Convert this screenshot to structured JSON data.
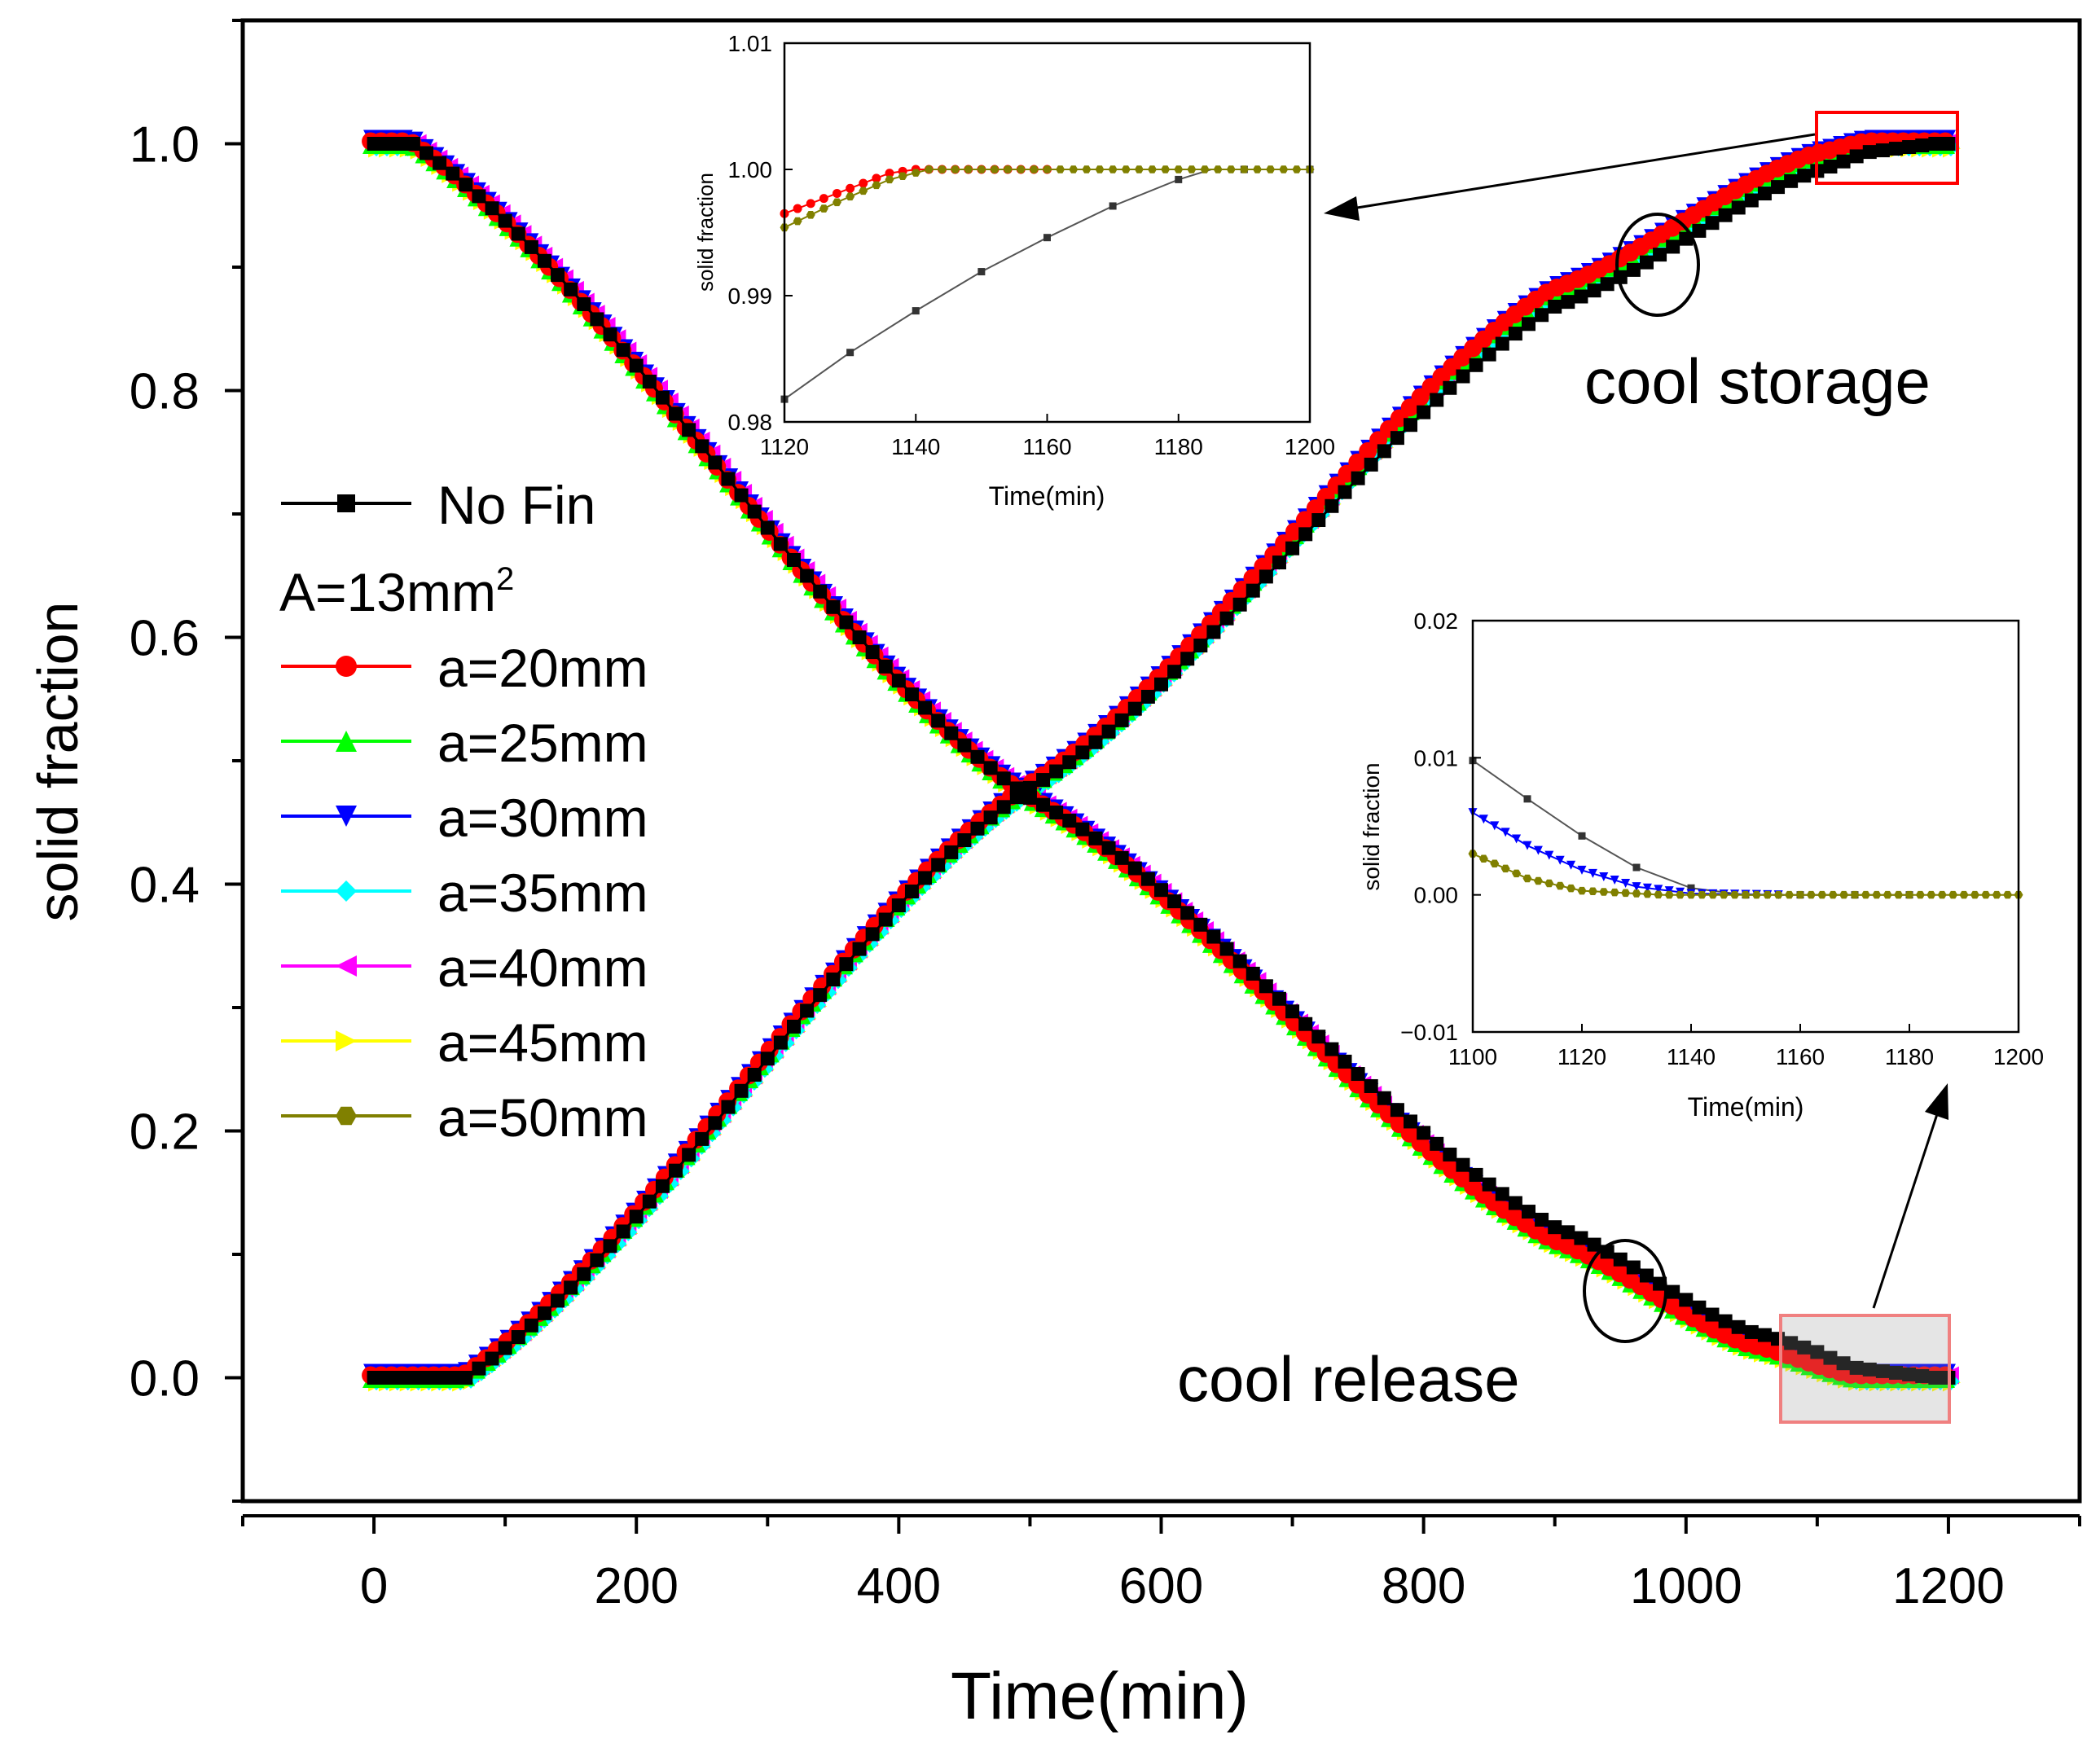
{
  "chart_data": {
    "main": {
      "type": "line",
      "xlabel": "Time(min)",
      "ylabel": "solid fraction",
      "xlim": [
        -100,
        1300
      ],
      "ylim": [
        -0.1,
        1.1
      ],
      "xticks": [
        "0",
        "200",
        "400",
        "600",
        "800",
        "1000",
        "1200"
      ],
      "yticks": [
        "0.0",
        "0.2",
        "0.4",
        "0.6",
        "0.8",
        "1.0"
      ],
      "legend": {
        "group_label": "A=13mm",
        "group_label_sup": "2",
        "entries": [
          {
            "name": "No Fin",
            "color": "#000000",
            "marker": "square"
          },
          {
            "name": "a=20mm",
            "color": "#ff0000",
            "marker": "circle"
          },
          {
            "name": "a=25mm",
            "color": "#00ff00",
            "marker": "triangle-up"
          },
          {
            "name": "a=30mm",
            "color": "#0000ff",
            "marker": "triangle-down"
          },
          {
            "name": "a=35mm",
            "color": "#00ffff",
            "marker": "diamond"
          },
          {
            "name": "a=40mm",
            "color": "#ff00ff",
            "marker": "triangle-left"
          },
          {
            "name": "a=45mm",
            "color": "#ffff00",
            "marker": "triangle-right"
          },
          {
            "name": "a=50mm",
            "color": "#808000",
            "marker": "hexagon"
          }
        ]
      },
      "series_shape": {
        "cool_storage": {
          "x": [
            0,
            70,
            500,
            900,
            1100,
            1140,
            1200
          ],
          "y": [
            0.0,
            0.0,
            0.478,
            0.88,
            0.99,
            1.0,
            1.0
          ]
        },
        "cool_release": {
          "x": [
            0,
            30,
            500,
            900,
            1050,
            1130,
            1200
          ],
          "y": [
            1.0,
            1.0,
            0.47,
            0.11,
            0.025,
            0.0,
            0.0
          ]
        },
        "nofin_offset_late": 0.012
      },
      "annotations": {
        "storage_label": "cool storage",
        "release_label": "cool release"
      }
    },
    "inset_storage": {
      "type": "line",
      "xlabel": "Time(min)",
      "ylabel": "solid fraction",
      "xlim": [
        1120,
        1200
      ],
      "ylim": [
        0.98,
        1.01
      ],
      "xticks": [
        "1120",
        "1140",
        "1160",
        "1180",
        "1200"
      ],
      "yticks": [
        "0.98",
        "0.99",
        "1.00",
        "1.01"
      ],
      "series": [
        {
          "name": "No Fin",
          "x": [
            1120,
            1130,
            1140,
            1150,
            1160,
            1170,
            1180,
            1185,
            1190,
            1200
          ],
          "y": [
            0.9818,
            0.9855,
            0.9888,
            0.9919,
            0.9946,
            0.9971,
            0.9992,
            1.0,
            1.0,
            1.0
          ]
        },
        {
          "name": "a=20mm",
          "x": [
            1120,
            1130,
            1136,
            1140,
            1160
          ],
          "y": [
            0.9965,
            0.9985,
            0.9997,
            1.0,
            1.0
          ]
        },
        {
          "name": "a=50mm",
          "x": [
            1120,
            1128,
            1136,
            1142,
            1160,
            1200
          ],
          "y": [
            0.9954,
            0.9974,
            0.9992,
            1.0,
            1.0,
            1.0
          ]
        }
      ]
    },
    "inset_release": {
      "type": "line",
      "xlabel": "Time(min)",
      "ylabel": "solid fraction",
      "xlim": [
        1100,
        1200
      ],
      "ylim": [
        -0.01,
        0.02
      ],
      "xticks": [
        "1100",
        "1120",
        "1140",
        "1160",
        "1180",
        "1200"
      ],
      "yticks": [
        "−0.01",
        "0.00",
        "0.01",
        "0.02"
      ],
      "series": [
        {
          "name": "No Fin",
          "x": [
            1100,
            1110,
            1120,
            1130,
            1140,
            1150,
            1160,
            1170,
            1180
          ],
          "y": [
            0.0098,
            0.007,
            0.0043,
            0.002,
            0.0005,
            0.0,
            0.0,
            0.0,
            0.0
          ]
        },
        {
          "name": "a=30mm",
          "x": [
            1100,
            1110,
            1120,
            1130,
            1140,
            1157
          ],
          "y": [
            0.006,
            0.0036,
            0.0018,
            0.0006,
            0.0001,
            0.0
          ]
        },
        {
          "name": "a=50mm",
          "x": [
            1100,
            1110,
            1120,
            1135,
            1150,
            1200
          ],
          "y": [
            0.003,
            0.0012,
            0.0003,
            0.0,
            0.0,
            0.0
          ]
        }
      ]
    }
  }
}
